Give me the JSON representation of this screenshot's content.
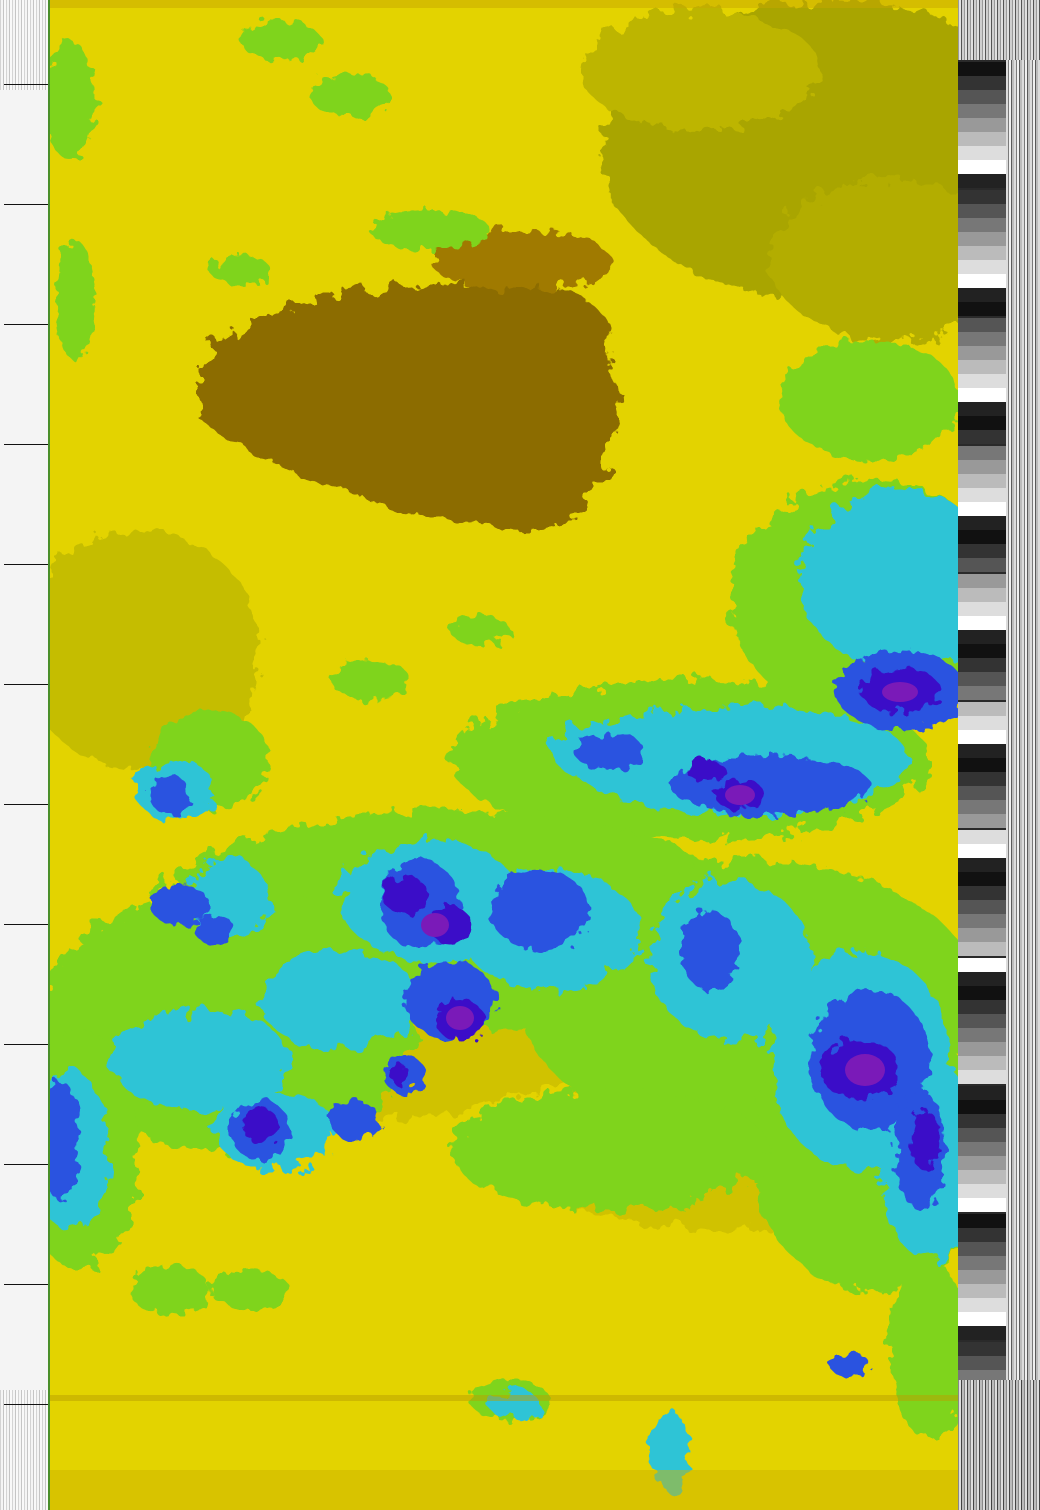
{
  "image": {
    "kind": "NOAA APT false-color satellite image",
    "palette": {
      "clear": "#e5d400",
      "haze": "#c9b800",
      "olive": "#a3a300",
      "dark_land": "#8c6e00",
      "low_cloud": "#7fd41e",
      "mid_cloud": "#2ec4d6",
      "high_cloud": "#2a52e0",
      "cold_top": "#3a10c8",
      "coldest_top": "#7a1ab8"
    }
  },
  "telemetry": {
    "tick_count": 12
  }
}
